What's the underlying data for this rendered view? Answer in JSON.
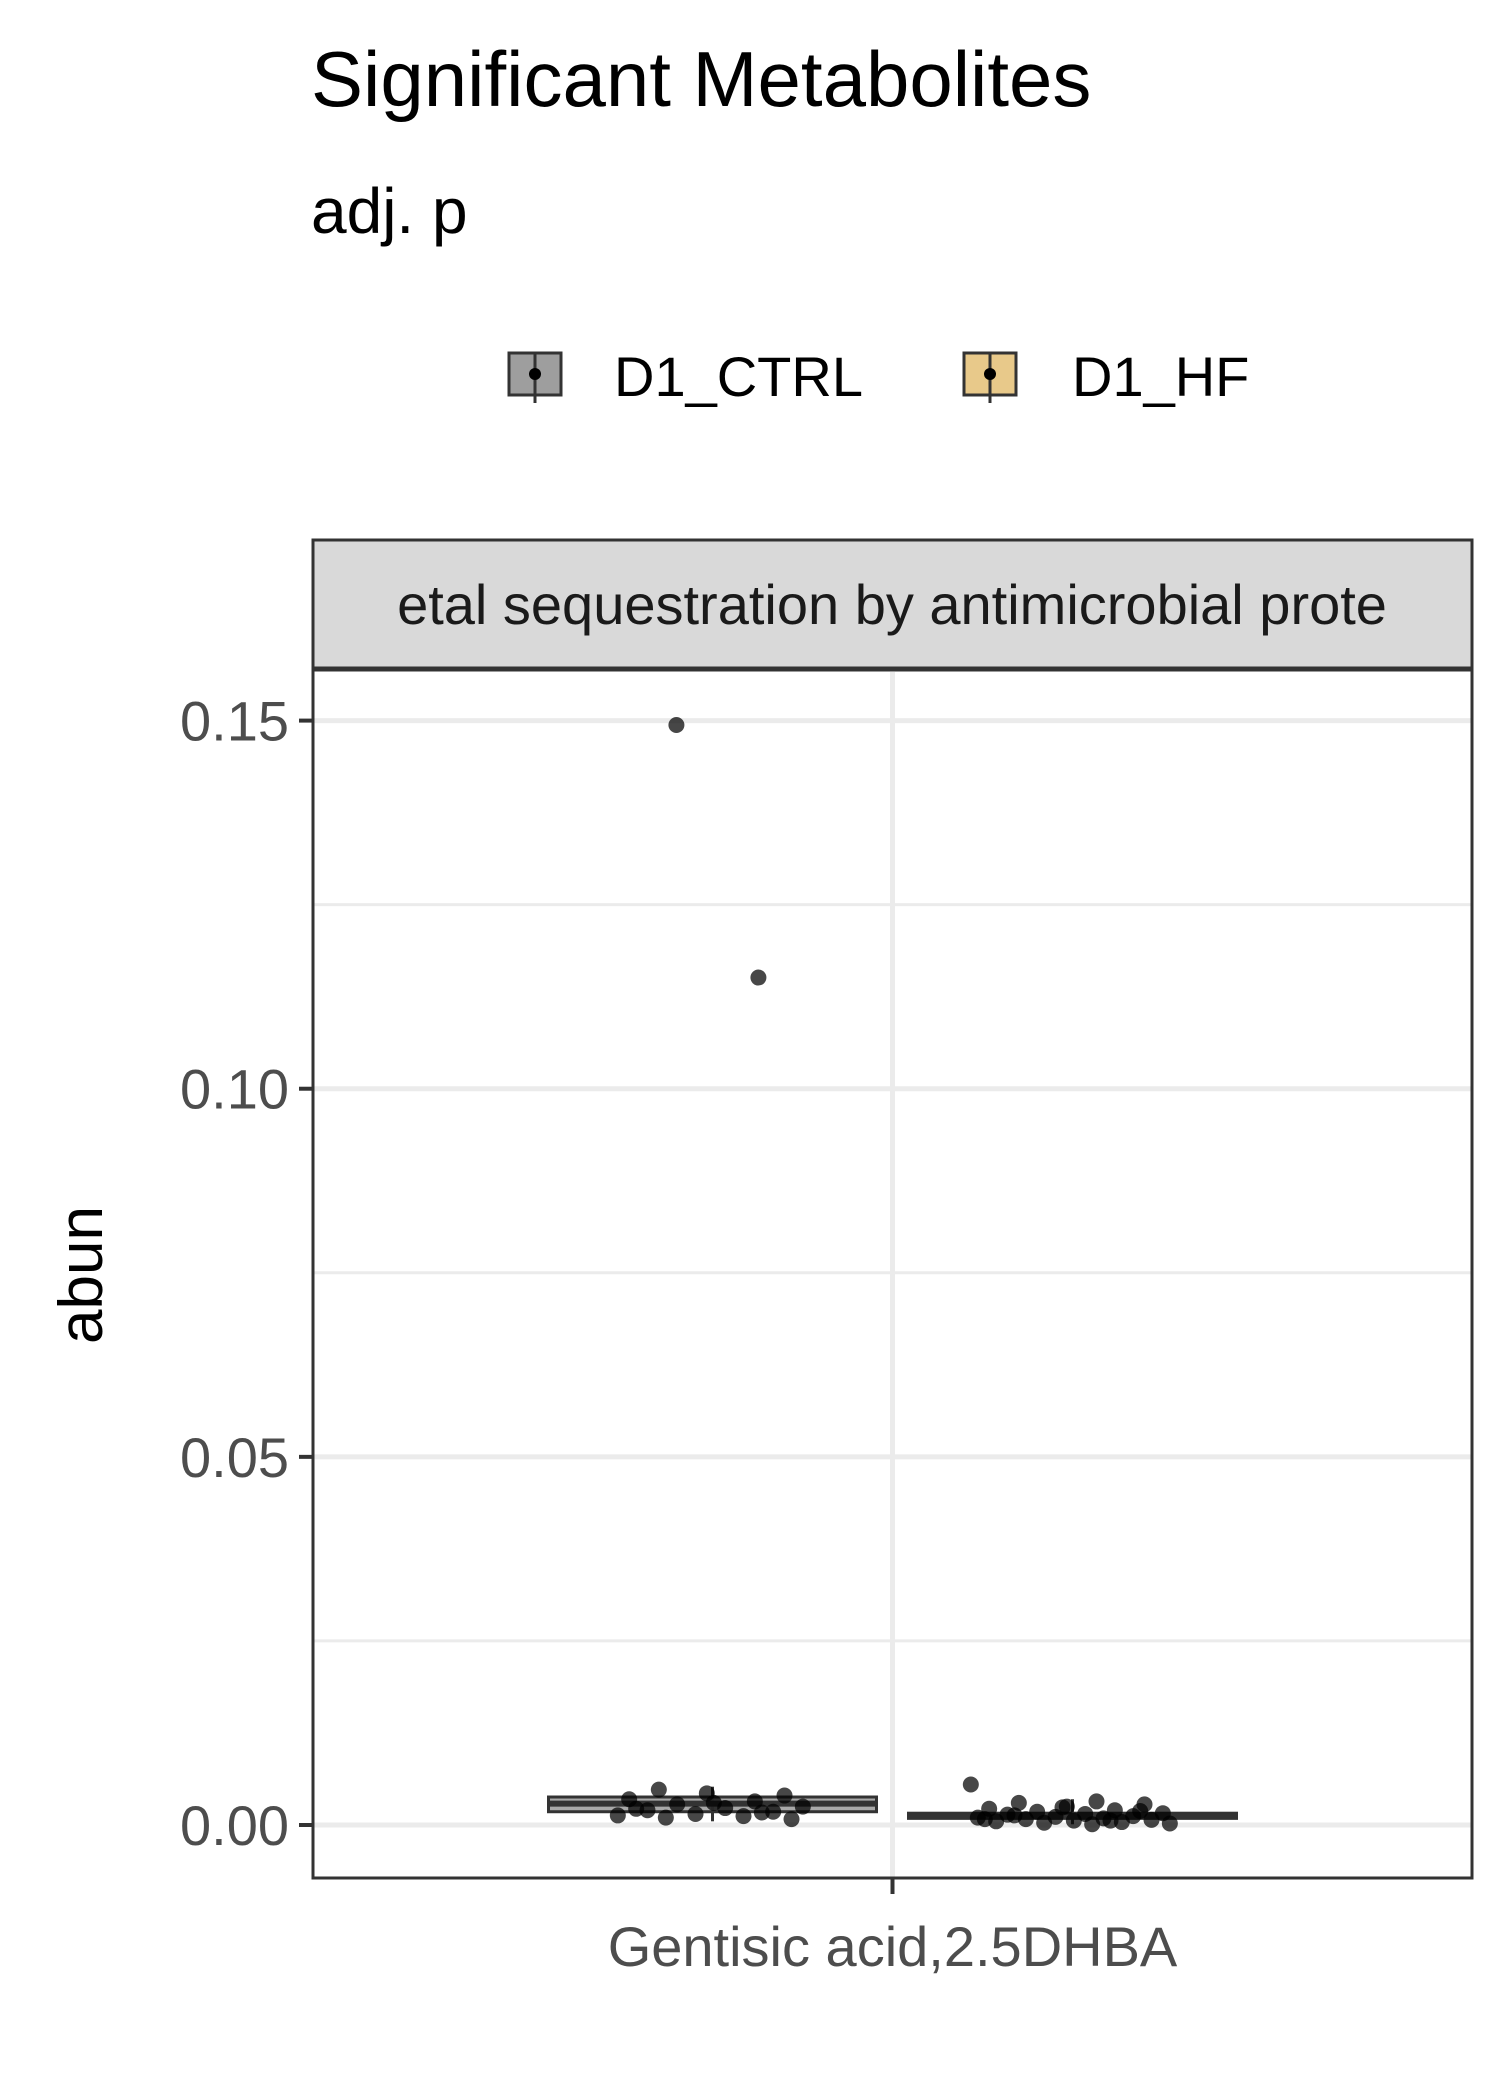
{
  "chart_data": {
    "type": "box",
    "title": "Significant Metabolites",
    "subtitle": "adj. p",
    "facet_label": "etal sequestration by antimicrobial prote",
    "xlabel": "",
    "ylabel": "abun",
    "categories": [
      "Gentisic acid,2.5DHBA"
    ],
    "ylim": [
      -0.0072,
      0.1566
    ],
    "yticks": [
      0.0,
      0.05,
      0.1,
      0.15
    ],
    "ytick_labels": [
      "0.00",
      "0.05",
      "0.10",
      "0.15"
    ],
    "grid": true,
    "legend_position": "top",
    "series": [
      {
        "name": "D1_CTRL",
        "color": "#9e9e9e",
        "box": {
          "q1": 0.0018,
          "median": 0.0029,
          "q3": 0.0038,
          "whisker_low": 0.0005,
          "whisker_high": 0.0052
        },
        "points": [
          0.1494,
          0.1151,
          0.0048,
          0.004,
          0.0043,
          0.0035,
          0.0032,
          0.0028,
          0.0025,
          0.0023,
          0.002,
          0.0018,
          0.0015,
          0.0013,
          0.0012,
          0.001,
          0.0008,
          0.003,
          0.0022,
          0.0017
        ]
      },
      {
        "name": "D1_HF",
        "color": "#e8c98a",
        "box": {
          "q1": 0.0009,
          "median": 0.0012,
          "q3": 0.0016,
          "whisker_low": 0.0001,
          "whisker_high": 0.0035
        },
        "points": [
          0.0055,
          0.0032,
          0.003,
          0.0028,
          0.0025,
          0.0022,
          0.002,
          0.0018,
          0.0016,
          0.0015,
          0.0014,
          0.0012,
          0.0011,
          0.001,
          0.0009,
          0.0008,
          0.0007,
          0.0006,
          0.0005,
          0.0004,
          0.0003,
          0.0002,
          0.0001,
          0.0013,
          0.0019,
          0.0024,
          0.0008,
          0.0006
        ]
      }
    ]
  }
}
